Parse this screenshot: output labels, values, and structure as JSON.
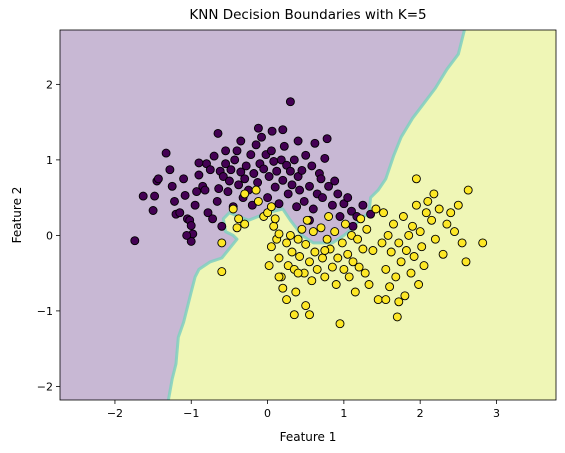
{
  "chart_data": {
    "type": "scatter",
    "title": "KNN Decision Boundaries with K=5",
    "xlabel": "Feature 1",
    "ylabel": "Feature 2",
    "xlim": [
      -2.72,
      3.78
    ],
    "ylim": [
      -2.18,
      2.72
    ],
    "xticks": [
      -2,
      -1,
      0,
      1,
      2,
      3
    ],
    "yticks": [
      -2,
      -1,
      0,
      1,
      2
    ],
    "xtick_labels": [
      "−2",
      "−1",
      "0",
      "1",
      "2",
      "3"
    ],
    "ytick_labels": [
      "−2",
      "−1",
      "0",
      "1",
      "2"
    ],
    "grid": false,
    "legend": "none",
    "colors": {
      "class0_point": "#440154",
      "class1_point": "#fde725",
      "class0_region": "#c8b8d4",
      "class1_region": "#eff6b6",
      "boundary": "#7fcfc0",
      "point_edge": "#000000"
    },
    "decision_regions": [
      {
        "class": 0,
        "boundary": [
          [
            -2.72,
            2.72
          ],
          [
            2.58,
            2.72
          ],
          [
            2.5,
            2.4
          ],
          [
            2.35,
            2.2
          ],
          [
            2.2,
            1.95
          ],
          [
            2.05,
            1.75
          ],
          [
            1.9,
            1.55
          ],
          [
            1.75,
            1.3
          ],
          [
            1.65,
            1.05
          ],
          [
            1.55,
            0.75
          ],
          [
            1.45,
            0.6
          ],
          [
            1.35,
            0.5
          ],
          [
            1.33,
            0.3
          ],
          [
            1.2,
            0.2
          ],
          [
            1.12,
            0.1
          ],
          [
            1.0,
            0.0
          ],
          [
            0.85,
            -0.1
          ],
          [
            0.6,
            -0.1
          ],
          [
            0.45,
            0.0
          ],
          [
            0.3,
            0.2
          ],
          [
            0.2,
            0.35
          ],
          [
            0.0,
            0.3
          ],
          [
            -0.25,
            0.2
          ],
          [
            -0.5,
            0.3
          ],
          [
            -0.58,
            0.22
          ],
          [
            -0.55,
            0.05
          ],
          [
            -0.45,
            0.0
          ],
          [
            -0.4,
            -0.05
          ],
          [
            -0.6,
            -0.3
          ],
          [
            -0.75,
            -0.35
          ],
          [
            -0.9,
            -0.45
          ],
          [
            -0.95,
            -0.55
          ],
          [
            -1.0,
            -0.75
          ],
          [
            -1.05,
            -0.95
          ],
          [
            -1.1,
            -1.15
          ],
          [
            -1.17,
            -1.35
          ],
          [
            -1.2,
            -1.7
          ],
          [
            -1.25,
            -1.9
          ],
          [
            -1.3,
            -2.18
          ],
          [
            -2.72,
            -2.18
          ]
        ]
      },
      {
        "class": 1,
        "boundary": [
          [
            2.58,
            2.72
          ],
          [
            3.78,
            2.72
          ],
          [
            3.78,
            -2.18
          ],
          [
            -1.3,
            -2.18
          ],
          [
            -1.25,
            -1.9
          ],
          [
            -1.2,
            -1.7
          ],
          [
            -1.17,
            -1.35
          ],
          [
            -1.1,
            -1.15
          ],
          [
            -1.05,
            -0.95
          ],
          [
            -1.0,
            -0.75
          ],
          [
            -0.95,
            -0.55
          ],
          [
            -0.9,
            -0.45
          ],
          [
            -0.75,
            -0.35
          ],
          [
            -0.6,
            -0.3
          ],
          [
            -0.4,
            -0.05
          ],
          [
            -0.45,
            0.0
          ],
          [
            -0.55,
            0.05
          ],
          [
            -0.58,
            0.22
          ],
          [
            -0.5,
            0.3
          ],
          [
            -0.25,
            0.2
          ],
          [
            0.0,
            0.3
          ],
          [
            0.2,
            0.35
          ],
          [
            0.3,
            0.2
          ],
          [
            0.45,
            0.0
          ],
          [
            0.6,
            -0.1
          ],
          [
            0.85,
            -0.1
          ],
          [
            1.0,
            0.0
          ],
          [
            1.12,
            0.1
          ],
          [
            1.2,
            0.2
          ],
          [
            1.33,
            0.3
          ],
          [
            1.35,
            0.5
          ],
          [
            1.45,
            0.6
          ],
          [
            1.55,
            0.75
          ],
          [
            1.65,
            1.05
          ],
          [
            1.75,
            1.3
          ],
          [
            1.9,
            1.55
          ],
          [
            2.05,
            1.75
          ],
          [
            2.2,
            1.95
          ],
          [
            2.35,
            2.2
          ],
          [
            2.5,
            2.4
          ]
        ]
      }
    ],
    "series": [
      {
        "class": 0,
        "points": [
          [
            -1.74,
            -0.07
          ],
          [
            -1.63,
            0.52
          ],
          [
            -1.45,
            0.72
          ],
          [
            -1.48,
            0.52
          ],
          [
            -1.5,
            0.33
          ],
          [
            -1.43,
            0.75
          ],
          [
            -1.33,
            1.09
          ],
          [
            -1.28,
            0.87
          ],
          [
            -1.22,
            0.45
          ],
          [
            -1.2,
            0.28
          ],
          [
            -1.15,
            0.3
          ],
          [
            -1.1,
            0.75
          ],
          [
            -1.08,
            0.53
          ],
          [
            -1.05,
            0.22
          ],
          [
            -1.02,
            0.2
          ],
          [
            -1.0,
            0.13
          ],
          [
            -0.98,
            0.02
          ],
          [
            -1.0,
            -0.08
          ],
          [
            -1.06,
            0.0
          ],
          [
            -0.95,
            0.4
          ],
          [
            -0.93,
            0.58
          ],
          [
            -0.9,
            0.8
          ],
          [
            -0.85,
            0.65
          ],
          [
            -0.82,
            0.6
          ],
          [
            -0.8,
            0.95
          ],
          [
            -0.78,
            0.3
          ],
          [
            -0.75,
            0.87
          ],
          [
            -0.7,
            1.05
          ],
          [
            -0.72,
            0.22
          ],
          [
            -0.66,
            0.45
          ],
          [
            -0.64,
            0.62
          ],
          [
            -0.62,
            0.85
          ],
          [
            -0.6,
            0.12
          ],
          [
            -0.58,
            0.78
          ],
          [
            -0.55,
            0.95
          ],
          [
            -0.52,
            0.58
          ],
          [
            -0.5,
            0.72
          ],
          [
            -0.48,
            0.87
          ],
          [
            -0.45,
            0.38
          ],
          [
            -0.43,
            1.0
          ],
          [
            -0.4,
            1.12
          ],
          [
            -0.38,
            0.67
          ],
          [
            -0.35,
            0.84
          ],
          [
            -0.32,
            0.5
          ],
          [
            -0.3,
            0.75
          ],
          [
            -0.28,
            0.92
          ],
          [
            -0.25,
            0.6
          ],
          [
            -0.22,
            1.07
          ],
          [
            -0.2,
            0.4
          ],
          [
            -0.18,
            0.82
          ],
          [
            -0.15,
            1.2
          ],
          [
            -0.13,
            0.7
          ],
          [
            -0.1,
            0.95
          ],
          [
            -0.08,
            1.3
          ],
          [
            -0.05,
            0.88
          ],
          [
            -0.02,
            1.07
          ],
          [
            0.0,
            0.5
          ],
          [
            0.02,
            0.78
          ],
          [
            0.05,
            1.12
          ],
          [
            0.06,
            1.38
          ],
          [
            0.08,
            0.98
          ],
          [
            0.1,
            0.64
          ],
          [
            0.12,
            0.85
          ],
          [
            0.15,
            0.42
          ],
          [
            0.18,
            1.0
          ],
          [
            0.2,
            0.73
          ],
          [
            0.22,
            1.18
          ],
          [
            0.25,
            0.93
          ],
          [
            0.27,
            0.55
          ],
          [
            0.3,
            0.85
          ],
          [
            0.3,
            1.77
          ],
          [
            0.32,
            0.67
          ],
          [
            0.35,
            1.0
          ],
          [
            0.38,
            0.38
          ],
          [
            0.4,
            0.78
          ],
          [
            0.42,
            0.6
          ],
          [
            0.45,
            0.86
          ],
          [
            0.48,
            0.45
          ],
          [
            0.5,
            1.06
          ],
          [
            0.55,
            0.65
          ],
          [
            0.58,
            0.92
          ],
          [
            0.6,
            0.35
          ],
          [
            0.62,
            1.22
          ],
          [
            0.65,
            0.55
          ],
          [
            0.68,
            0.82
          ],
          [
            0.72,
            0.5
          ],
          [
            0.75,
            1.02
          ],
          [
            0.78,
            1.28
          ],
          [
            0.8,
            0.65
          ],
          [
            0.85,
            0.4
          ],
          [
            0.88,
            0.72
          ],
          [
            0.92,
            0.55
          ],
          [
            0.95,
            0.25
          ],
          [
            1.0,
            0.42
          ],
          [
            1.05,
            0.5
          ],
          [
            1.1,
            0.32
          ],
          [
            1.12,
            0.12
          ],
          [
            1.17,
            0.25
          ],
          [
            1.25,
            0.4
          ],
          [
            1.35,
            0.28
          ],
          [
            -0.65,
            1.35
          ],
          [
            -0.35,
            1.25
          ],
          [
            -0.12,
            1.42
          ],
          [
            0.2,
            1.4
          ],
          [
            0.4,
            1.25
          ],
          [
            -0.55,
            1.12
          ],
          [
            -0.9,
            0.96
          ],
          [
            -1.25,
            0.65
          ],
          [
            0.55,
            0.2
          ],
          [
            0.7,
            0.75
          ]
        ]
      },
      {
        "class": 1,
        "points": [
          [
            -0.6,
            -0.48
          ],
          [
            -0.6,
            -0.1
          ],
          [
            -0.45,
            0.35
          ],
          [
            -0.4,
            0.1
          ],
          [
            -0.38,
            0.22
          ],
          [
            -0.3,
            0.15
          ],
          [
            -0.15,
            0.6
          ],
          [
            -0.12,
            0.45
          ],
          [
            -0.05,
            0.25
          ],
          [
            0.0,
            0.3
          ],
          [
            0.05,
            0.38
          ],
          [
            0.08,
            0.12
          ],
          [
            0.1,
            0.22
          ],
          [
            0.12,
            -0.05
          ],
          [
            0.15,
            0.02
          ],
          [
            0.02,
            -0.4
          ],
          [
            0.05,
            -0.15
          ],
          [
            0.15,
            -0.3
          ],
          [
            0.18,
            -0.55
          ],
          [
            0.2,
            -0.7
          ],
          [
            0.25,
            -0.1
          ],
          [
            0.27,
            -0.4
          ],
          [
            0.3,
            0.0
          ],
          [
            0.32,
            -0.22
          ],
          [
            0.35,
            -0.45
          ],
          [
            0.37,
            -0.75
          ],
          [
            0.4,
            -0.05
          ],
          [
            0.42,
            -0.28
          ],
          [
            0.45,
            0.08
          ],
          [
            0.48,
            -0.5
          ],
          [
            0.5,
            -0.12
          ],
          [
            0.52,
            0.2
          ],
          [
            0.55,
            -0.35
          ],
          [
            0.58,
            -0.6
          ],
          [
            0.6,
            0.05
          ],
          [
            0.62,
            -0.22
          ],
          [
            0.65,
            -0.45
          ],
          [
            0.7,
            0.1
          ],
          [
            0.72,
            -0.3
          ],
          [
            0.75,
            -0.55
          ],
          [
            0.78,
            -0.05
          ],
          [
            0.8,
            0.25
          ],
          [
            0.82,
            -0.18
          ],
          [
            0.85,
            -0.42
          ],
          [
            0.88,
            0.05
          ],
          [
            0.9,
            -0.65
          ],
          [
            0.92,
            -0.3
          ],
          [
            0.95,
            -1.17
          ],
          [
            0.98,
            -0.1
          ],
          [
            1.0,
            -0.45
          ],
          [
            1.02,
            0.15
          ],
          [
            1.05,
            -0.25
          ],
          [
            1.07,
            -0.55
          ],
          [
            1.1,
            0.0
          ],
          [
            1.12,
            -0.35
          ],
          [
            1.15,
            -0.75
          ],
          [
            1.18,
            -0.05
          ],
          [
            1.2,
            -0.42
          ],
          [
            1.22,
            0.22
          ],
          [
            1.25,
            -0.18
          ],
          [
            1.28,
            -0.5
          ],
          [
            1.3,
            0.08
          ],
          [
            1.33,
            -0.65
          ],
          [
            1.38,
            -0.2
          ],
          [
            1.42,
            0.35
          ],
          [
            1.45,
            -0.85
          ],
          [
            1.5,
            -0.1
          ],
          [
            1.52,
            0.3
          ],
          [
            1.55,
            -0.45
          ],
          [
            1.58,
            0.0
          ],
          [
            1.6,
            -0.68
          ],
          [
            1.62,
            -0.22
          ],
          [
            1.65,
            0.15
          ],
          [
            1.68,
            -0.55
          ],
          [
            1.7,
            -1.08
          ],
          [
            1.72,
            -0.1
          ],
          [
            1.75,
            -0.35
          ],
          [
            1.78,
            0.25
          ],
          [
            1.8,
            -0.8
          ],
          [
            1.82,
            -0.2
          ],
          [
            1.85,
            0.0
          ],
          [
            1.88,
            -0.5
          ],
          [
            1.9,
            0.12
          ],
          [
            1.92,
            -0.28
          ],
          [
            1.95,
            0.4
          ],
          [
            1.98,
            -0.65
          ],
          [
            2.0,
            0.05
          ],
          [
            2.02,
            -0.15
          ],
          [
            2.05,
            -0.4
          ],
          [
            2.08,
            0.3
          ],
          [
            2.1,
            0.45
          ],
          [
            2.15,
            0.2
          ],
          [
            2.18,
            0.55
          ],
          [
            2.2,
            -0.05
          ],
          [
            2.25,
            0.35
          ],
          [
            2.3,
            -0.25
          ],
          [
            2.35,
            0.15
          ],
          [
            2.4,
            0.3
          ],
          [
            2.45,
            0.05
          ],
          [
            2.55,
            -0.1
          ],
          [
            2.6,
            -0.35
          ],
          [
            2.63,
            0.6
          ],
          [
            2.82,
            -0.1
          ],
          [
            2.5,
            0.4
          ],
          [
            1.95,
            0.75
          ],
          [
            0.55,
            -1.05
          ],
          [
            0.5,
            -0.93
          ],
          [
            0.35,
            -1.05
          ],
          [
            0.25,
            -0.85
          ],
          [
            0.15,
            -0.55
          ],
          [
            0.4,
            -0.5
          ],
          [
            0.75,
            -0.2
          ],
          [
            1.55,
            -0.85
          ],
          [
            1.72,
            -0.88
          ],
          [
            -0.3,
            0.55
          ]
        ]
      }
    ]
  }
}
